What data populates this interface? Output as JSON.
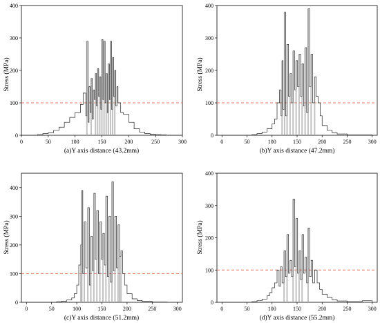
{
  "chart_data": [
    {
      "type": "line",
      "title": "(a)Y axis distance (43.2mm)",
      "xlabel": "",
      "ylabel": "Stress (MPa)",
      "xlim": [
        0,
        300
      ],
      "ylim": [
        0,
        400
      ],
      "xticks": [
        0,
        50,
        100,
        150,
        200,
        250,
        300
      ],
      "yticks": [
        0,
        100,
        200,
        300,
        400
      ],
      "reference_line": {
        "y": 100,
        "style": "dashed",
        "color": "#e8735f"
      },
      "series": [
        {
          "color": "#222222",
          "points": [
            [
              0,
              0
            ],
            [
              20,
              0
            ],
            [
              30,
              2
            ],
            [
              40,
              5
            ],
            [
              50,
              8
            ],
            [
              60,
              15
            ],
            [
              70,
              25
            ],
            [
              80,
              40
            ],
            [
              90,
              55
            ],
            [
              100,
              70
            ],
            [
              110,
              95
            ],
            [
              115,
              130
            ],
            [
              120,
              60
            ],
            [
              122,
              290
            ],
            [
              124,
              40
            ],
            [
              126,
              150
            ],
            [
              128,
              70
            ],
            [
              130,
              175
            ],
            [
              132,
              50
            ],
            [
              134,
              140
            ],
            [
              136,
              110
            ],
            [
              138,
              190
            ],
            [
              140,
              90
            ],
            [
              142,
              205
            ],
            [
              144,
              120
            ],
            [
              146,
              180
            ],
            [
              148,
              80
            ],
            [
              150,
              295
            ],
            [
              152,
              110
            ],
            [
              154,
              290
            ],
            [
              156,
              100
            ],
            [
              158,
              190
            ],
            [
              160,
              70
            ],
            [
              162,
              220
            ],
            [
              164,
              110
            ],
            [
              166,
              290
            ],
            [
              168,
              80
            ],
            [
              170,
              240
            ],
            [
              172,
              120
            ],
            [
              174,
              200
            ],
            [
              176,
              90
            ],
            [
              178,
              150
            ],
            [
              180,
              100
            ],
            [
              185,
              70
            ],
            [
              190,
              65
            ],
            [
              200,
              40
            ],
            [
              210,
              20
            ],
            [
              220,
              10
            ],
            [
              230,
              5
            ],
            [
              240,
              3
            ],
            [
              250,
              2
            ],
            [
              260,
              1
            ],
            [
              270,
              0
            ],
            [
              300,
              0
            ]
          ]
        }
      ]
    },
    {
      "type": "line",
      "title": "(b)Y axis distance (47.2mm)",
      "xlabel": "",
      "ylabel": "Stress (MPa)",
      "xlim": [
        -10,
        310
      ],
      "ylim": [
        0,
        400
      ],
      "xticks": [
        0,
        50,
        100,
        150,
        200,
        250,
        300
      ],
      "yticks": [
        0,
        100,
        200,
        300,
        400
      ],
      "reference_line": {
        "y": 100,
        "style": "dashed",
        "color": "#e8735f"
      },
      "series": [
        {
          "color": "#222222",
          "points": [
            [
              0,
              0
            ],
            [
              40,
              0
            ],
            [
              60,
              2
            ],
            [
              70,
              5
            ],
            [
              80,
              10
            ],
            [
              90,
              20
            ],
            [
              100,
              35
            ],
            [
              105,
              50
            ],
            [
              110,
              100
            ],
            [
              115,
              140
            ],
            [
              118,
              60
            ],
            [
              120,
              230
            ],
            [
              122,
              80
            ],
            [
              125,
              380
            ],
            [
              127,
              60
            ],
            [
              130,
              280
            ],
            [
              133,
              120
            ],
            [
              136,
              190
            ],
            [
              139,
              100
            ],
            [
              142,
              260
            ],
            [
              145,
              140
            ],
            [
              148,
              230
            ],
            [
              151,
              150
            ],
            [
              154,
              250
            ],
            [
              157,
              120
            ],
            [
              160,
              220
            ],
            [
              163,
              90
            ],
            [
              166,
              270
            ],
            [
              169,
              70
            ],
            [
              172,
              390
            ],
            [
              175,
              150
            ],
            [
              178,
              250
            ],
            [
              181,
              100
            ],
            [
              185,
              180
            ],
            [
              188,
              120
            ],
            [
              192,
              100
            ],
            [
              196,
              60
            ],
            [
              200,
              30
            ],
            [
              210,
              15
            ],
            [
              220,
              8
            ],
            [
              230,
              4
            ],
            [
              250,
              1
            ],
            [
              300,
              0
            ]
          ]
        }
      ]
    },
    {
      "type": "line",
      "title": "(c)Y axis distance (51.2mm)",
      "xlabel": "",
      "ylabel": "Stress (MPa)",
      "xlim": [
        -10,
        310
      ],
      "ylim": [
        0,
        450
      ],
      "xticks": [
        0,
        50,
        100,
        150,
        200,
        250,
        300
      ],
      "yticks": [
        0,
        100,
        200,
        300,
        400
      ],
      "reference_line": {
        "y": 100,
        "style": "dashed",
        "color": "#e8735f"
      },
      "series": [
        {
          "color": "#222222",
          "points": [
            [
              0,
              0
            ],
            [
              40,
              0
            ],
            [
              60,
              2
            ],
            [
              70,
              4
            ],
            [
              80,
              8
            ],
            [
              90,
              15
            ],
            [
              95,
              30
            ],
            [
              100,
              60
            ],
            [
              104,
              130
            ],
            [
              108,
              200
            ],
            [
              110,
              390
            ],
            [
              112,
              100
            ],
            [
              115,
              280
            ],
            [
              118,
              120
            ],
            [
              122,
              330
            ],
            [
              125,
              60
            ],
            [
              128,
              230
            ],
            [
              131,
              110
            ],
            [
              134,
              380
            ],
            [
              137,
              150
            ],
            [
              140,
              320
            ],
            [
              143,
              100
            ],
            [
              146,
              280
            ],
            [
              149,
              150
            ],
            [
              152,
              240
            ],
            [
              155,
              130
            ],
            [
              158,
              370
            ],
            [
              161,
              90
            ],
            [
              164,
              300
            ],
            [
              167,
              70
            ],
            [
              170,
              420
            ],
            [
              173,
              110
            ],
            [
              176,
              300
            ],
            [
              179,
              120
            ],
            [
              182,
              270
            ],
            [
              185,
              160
            ],
            [
              188,
              180
            ],
            [
              191,
              100
            ],
            [
              195,
              60
            ],
            [
              200,
              30
            ],
            [
              210,
              12
            ],
            [
              220,
              6
            ],
            [
              230,
              3
            ],
            [
              250,
              1
            ],
            [
              280,
              0
            ]
          ]
        }
      ]
    },
    {
      "type": "line",
      "title": "(d)Y axis distance (55.2mm)",
      "xlabel": "",
      "ylabel": "Stress (MPa)",
      "xlim": [
        -10,
        310
      ],
      "ylim": [
        0,
        400
      ],
      "xticks": [
        0,
        50,
        100,
        150,
        200,
        250,
        300
      ],
      "yticks": [
        0,
        100,
        200,
        300,
        400
      ],
      "reference_line": {
        "y": 100,
        "style": "dashed",
        "color": "#e8735f"
      },
      "series": [
        {
          "color": "#222222",
          "points": [
            [
              0,
              0
            ],
            [
              40,
              0
            ],
            [
              60,
              2
            ],
            [
              70,
              5
            ],
            [
              80,
              10
            ],
            [
              90,
              20
            ],
            [
              95,
              30
            ],
            [
              100,
              45
            ],
            [
              105,
              60
            ],
            [
              110,
              100
            ],
            [
              114,
              50
            ],
            [
              117,
              110
            ],
            [
              120,
              60
            ],
            [
              124,
              160
            ],
            [
              127,
              80
            ],
            [
              130,
              210
            ],
            [
              133,
              90
            ],
            [
              136,
              130
            ],
            [
              139,
              80
            ],
            [
              142,
              320
            ],
            [
              145,
              110
            ],
            [
              148,
              260
            ],
            [
              151,
              90
            ],
            [
              154,
              160
            ],
            [
              157,
              70
            ],
            [
              160,
              210
            ],
            [
              163,
              90
            ],
            [
              166,
              140
            ],
            [
              169,
              60
            ],
            [
              172,
              230
            ],
            [
              175,
              80
            ],
            [
              178,
              130
            ],
            [
              181,
              60
            ],
            [
              185,
              100
            ],
            [
              190,
              60
            ],
            [
              195,
              40
            ],
            [
              200,
              25
            ],
            [
              210,
              15
            ],
            [
              220,
              8
            ],
            [
              230,
              4
            ],
            [
              250,
              2
            ],
            [
              280,
              5
            ],
            [
              300,
              0
            ]
          ]
        }
      ]
    }
  ],
  "tick_labels_a": {
    "x0": "0",
    "x1": "50",
    "x2": "100",
    "x3": "150",
    "x4": "200",
    "x5": "250",
    "x6": "300",
    "y0": "0",
    "y1": "100",
    "y2": "200",
    "y3": "300",
    "y4": "400"
  }
}
